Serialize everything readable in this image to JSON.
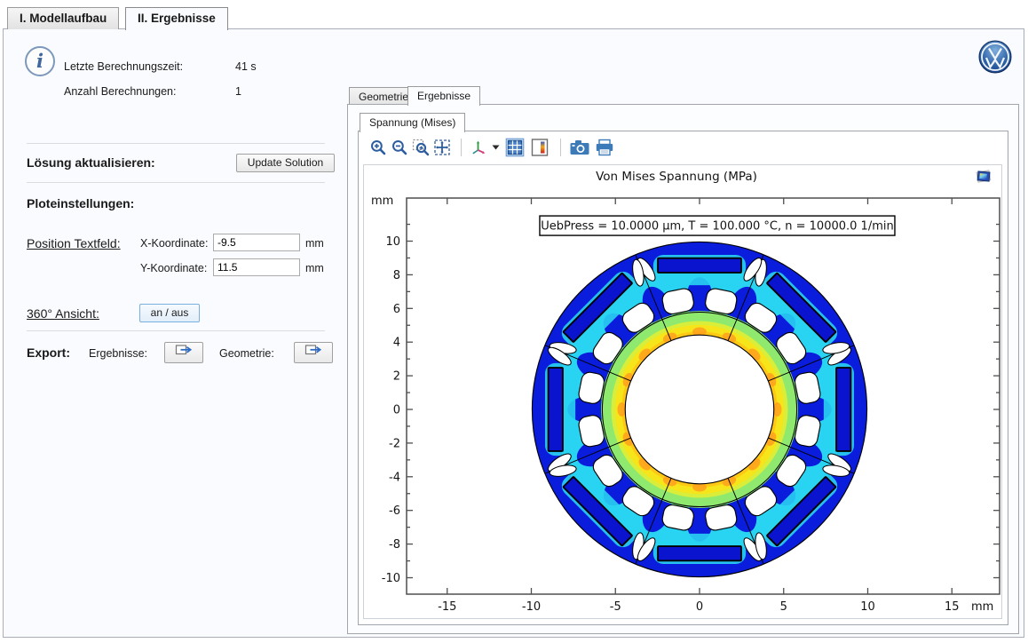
{
  "app": {
    "tabs": [
      {
        "label": "I. Modellaufbau",
        "active": false
      },
      {
        "label": "II. Ergebnisse",
        "active": true
      }
    ]
  },
  "info": {
    "computation_time_label": "Letzte Berechnungszeit:",
    "computation_time_value": "41 s",
    "computation_count_label": "Anzahl Berechnungen:",
    "computation_count_value": "1"
  },
  "update_section": {
    "label": "Lösung aktualisieren:",
    "button_label": "Update Solution"
  },
  "plot_settings": {
    "header": "Ploteinstellungen:",
    "position_label": "Position Textfeld:",
    "x_label": "X-Koordinate:",
    "x_value": "-9.5",
    "x_unit": "mm",
    "y_label": "Y-Koordinate:",
    "y_value": "11.5",
    "y_unit": "mm"
  },
  "view360": {
    "label": "360° Ansicht:",
    "button_label": "an / aus"
  },
  "export": {
    "header": "Export:",
    "results_label": "Ergebnisse:",
    "geometry_label": "Geometrie:"
  },
  "results_panel": {
    "tab_geometry": "Geometrie",
    "tab_results": "Ergebnisse",
    "plot_tab": "Spannung (Mises)",
    "toolbar_icons": [
      "zoom-in",
      "zoom-out",
      "zoom-to-selection",
      "zoom-extents",
      "view-orientation",
      "grid",
      "color-legend",
      "image-snapshot",
      "print"
    ]
  },
  "brand": {
    "logo": "VW"
  },
  "chart_data": {
    "type": "fem-surface",
    "title": "Von Mises Spannung (MPa)",
    "annotation": {
      "text": "UebPress = 10.0000 μm, T = 100.000 °C, n = 10000.0  1/min",
      "anchor_x_mm": -9.5,
      "anchor_y_mm": 11.5
    },
    "axes": {
      "x_unit": "mm",
      "y_unit": "mm",
      "xlim": [
        -17.5,
        17.9
      ],
      "ylim": [
        -11.0,
        12.6
      ],
      "x_ticks": [
        -15,
        -10,
        -5,
        0,
        5,
        10,
        15
      ],
      "y_ticks": [
        10,
        8,
        6,
        4,
        2,
        0,
        -2,
        -4,
        -6,
        -8,
        -10
      ],
      "y_minor_ticks": [
        11,
        9,
        7,
        5,
        3,
        1,
        -1,
        -3,
        -5,
        -7,
        -9
      ],
      "grid": false
    },
    "colormap": "jet",
    "legend_shown": false,
    "palette": {
      "blue": "#0a1ddd",
      "cyan": "#29d3f2",
      "green": "#8fe96e",
      "yellow_green": "#d9ee3a",
      "yellow": "#f5e51a",
      "orange": "#ffa01e",
      "magnet": "#0a14cf"
    },
    "geometry_mm": {
      "outer_radius": 9.95,
      "bore_radius": 4.42,
      "hub_ring_radius": 5.78,
      "magnet_count": 8,
      "magnet_length": 4.95,
      "magnet_thickness": 0.86,
      "magnet_center_radius": 8.56,
      "cooling_hole_count": 16,
      "cooling_hole_ring_radius": 6.55,
      "cooling_hole_size": [
        1.8,
        1.35
      ],
      "flux_barrier_count": 16
    },
    "stress_summary": {
      "high": "gelb/orange am Bohrungsrand",
      "low": "blau am Außenrand und in den Magneten"
    }
  }
}
